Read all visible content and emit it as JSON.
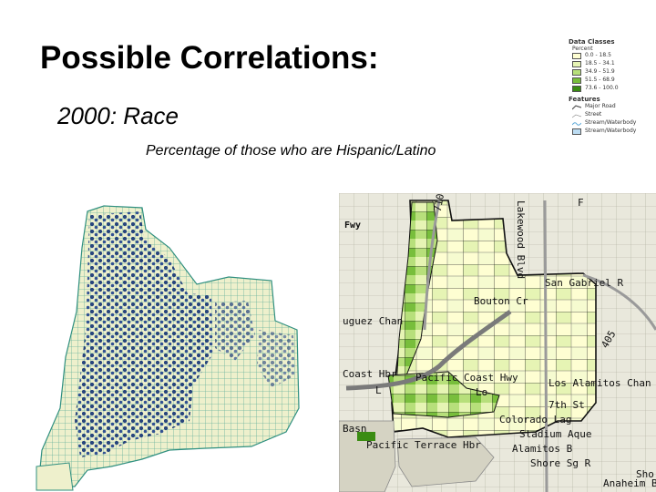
{
  "slide": {
    "title": "Possible Correlations:",
    "subtitle": "2000: Race",
    "caption": "Percentage of those who are Hispanic/Latino"
  },
  "legend": {
    "heading_classes": "Data Classes",
    "subheading": "Percent",
    "classes": [
      {
        "label": "0.0 - 18.5",
        "color": "#fefed2"
      },
      {
        "label": "18.5 - 34.1",
        "color": "#e6f4b4"
      },
      {
        "label": "34.9 - 51.9",
        "color": "#b7df7b"
      },
      {
        "label": "51.5 - 68.9",
        "color": "#78be3c"
      },
      {
        "label": "73.6 - 100.0",
        "color": "#3a8c12"
      }
    ],
    "heading_features": "Features",
    "features": [
      {
        "label": "Major Road",
        "icon": "road-icon"
      },
      {
        "label": "Street",
        "icon": "street-icon"
      },
      {
        "label": "Stream/Waterbody",
        "icon": "stream-icon"
      },
      {
        "label": "Stream/Waterbody",
        "icon": "waterbody-icon"
      }
    ]
  },
  "map_right": {
    "labels": {
      "fwy": "Fwy",
      "lakewood": "Lakewood Blvd",
      "san_gabriel": "San Gabriel R",
      "bouton": "Bouton Cr",
      "uguez": "uguez Chan",
      "coast_hbr": "Coast Hbr",
      "pacific_coast": "Pacific Coast Hwy",
      "los_alamitos": "Los Alamitos Chan",
      "i405": "405",
      "i710": "710",
      "seventh": "7th St",
      "colorado_lag": "Colorado Lag",
      "stadium_aque": "Stadium Aque",
      "pacific_terrace": "Pacific Terrace Hbr",
      "alamitos_b": "Alamitos B",
      "shore_sg": "Shore Sg R",
      "anaheim_b": "Anaheim B",
      "basn": "Basn",
      "l1": "L",
      "l2": "Lo",
      "sho": "Sho",
      "f": "F"
    }
  }
}
